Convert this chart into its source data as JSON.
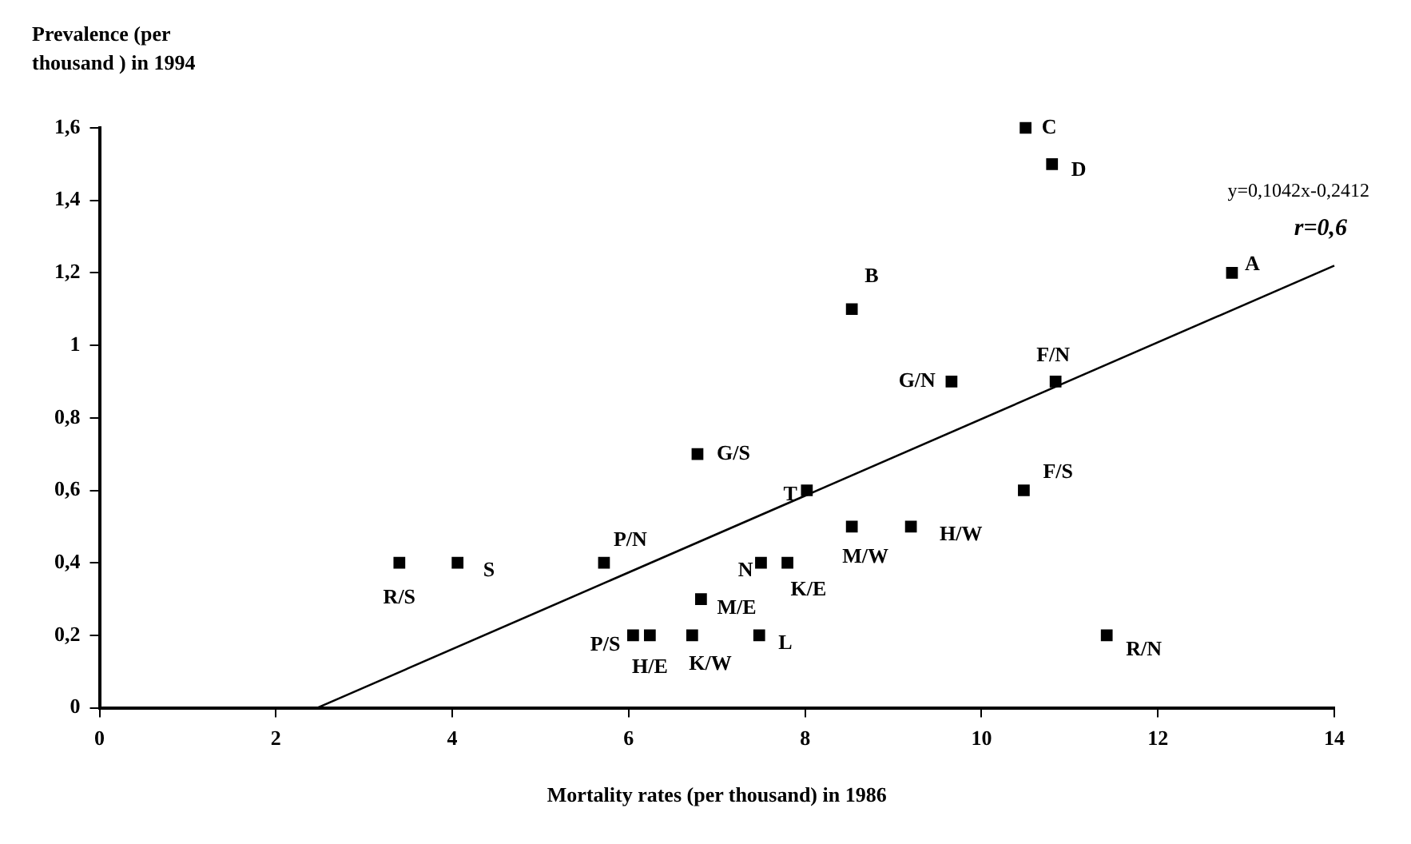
{
  "chart_data": {
    "type": "scatter",
    "xlabel": "Mortality rates (per thousand) in 1986",
    "ylabel": "Prevalence (per thousand ) in 1994",
    "xlim": [
      0,
      14
    ],
    "xticks": [
      0,
      2,
      4,
      6,
      8,
      10,
      12,
      14
    ],
    "ylim": [
      0,
      1.6
    ],
    "yticks": [
      {
        "value": 0,
        "label": "0"
      },
      {
        "value": 0.2,
        "label": "0,2"
      },
      {
        "value": 0.4,
        "label": "0,4"
      },
      {
        "value": 0.6,
        "label": "0,6"
      },
      {
        "value": 0.8,
        "label": "0,8"
      },
      {
        "value": 1,
        "label": "1"
      },
      {
        "value": 1.2,
        "label": "1,2"
      },
      {
        "value": 1.4,
        "label": "1,4"
      },
      {
        "value": 1.6,
        "label": "1,6"
      }
    ],
    "grid": false,
    "legend": false,
    "marker": "square",
    "series": [
      {
        "type": "scatter",
        "color": "#000000",
        "x": [
          3.4,
          4.06,
          5.72,
          6.78,
          6.05,
          6.24,
          6.72,
          6.82,
          7.5,
          7.8,
          7.48,
          8.02,
          8.53,
          9.2,
          8.53,
          9.66,
          10.84,
          10.48,
          10.5,
          10.8,
          12.84,
          11.42
        ],
        "values": [
          0.4,
          0.4,
          0.4,
          0.7,
          0.2,
          0.2,
          0.2,
          0.3,
          0.4,
          0.4,
          0.2,
          0.6,
          0.5,
          0.5,
          1.1,
          0.9,
          0.9,
          0.6,
          1.6,
          1.5,
          1.2,
          0.2
        ]
      },
      {
        "type": "line",
        "color": "#000000",
        "marker": "none",
        "x": [
          2.47,
          14
        ],
        "values": [
          0,
          1.22
        ]
      }
    ],
    "annotations": [
      {
        "text": "R/S",
        "x": 3.4,
        "y": 0.4
      },
      {
        "text": "S",
        "x": 4.06,
        "y": 0.4
      },
      {
        "text": "P/N",
        "x": 5.72,
        "y": 0.4
      },
      {
        "text": "G/S",
        "x": 6.78,
        "y": 0.7
      },
      {
        "text": "P/S",
        "x": 6.05,
        "y": 0.2
      },
      {
        "text": "H/E",
        "x": 6.24,
        "y": 0.2
      },
      {
        "text": "K/W",
        "x": 6.72,
        "y": 0.2
      },
      {
        "text": "M/E",
        "x": 6.82,
        "y": 0.3
      },
      {
        "text": "N",
        "x": 7.5,
        "y": 0.4
      },
      {
        "text": "K/E",
        "x": 7.8,
        "y": 0.4
      },
      {
        "text": "L",
        "x": 7.48,
        "y": 0.2
      },
      {
        "text": "T",
        "x": 8.02,
        "y": 0.6
      },
      {
        "text": "M/W",
        "x": 8.53,
        "y": 0.5
      },
      {
        "text": "H/W",
        "x": 9.2,
        "y": 0.5
      },
      {
        "text": "B",
        "x": 8.53,
        "y": 1.1
      },
      {
        "text": "G/N",
        "x": 9.66,
        "y": 0.9
      },
      {
        "text": "F/N",
        "x": 10.84,
        "y": 0.9
      },
      {
        "text": "F/S",
        "x": 10.48,
        "y": 0.6
      },
      {
        "text": "C",
        "x": 10.5,
        "y": 1.6
      },
      {
        "text": "D",
        "x": 10.8,
        "y": 1.5
      },
      {
        "text": "A",
        "x": 12.84,
        "y": 1.2
      },
      {
        "text": "R/N",
        "x": 11.42,
        "y": 0.2
      },
      "y=0,1042x-0,2412",
      "r=0,6"
    ]
  }
}
